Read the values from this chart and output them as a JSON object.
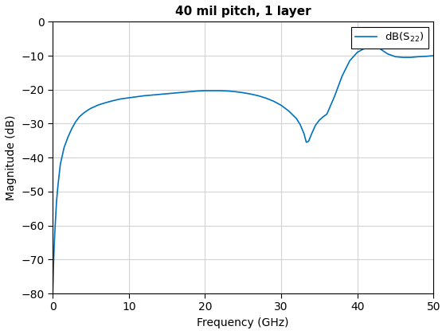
{
  "title": "40 mil pitch, 1 layer",
  "xlabel": "Frequency (GHz)",
  "ylabel": "Magnitude (dB)",
  "xlim": [
    0,
    50
  ],
  "ylim": [
    -80,
    0
  ],
  "xticks": [
    0,
    10,
    20,
    30,
    40,
    50
  ],
  "yticks": [
    0,
    -10,
    -20,
    -30,
    -40,
    -50,
    -60,
    -70,
    -80
  ],
  "line_color": "#0072BD",
  "line_width": 1.2,
  "legend_label": "dB(S_{22})",
  "grid_color": "#D3D3D3",
  "background_color": "#FFFFFF",
  "freq_points": [
    0.0,
    0.05,
    0.1,
    0.2,
    0.3,
    0.5,
    0.7,
    1.0,
    1.5,
    2.0,
    2.5,
    3.0,
    3.5,
    4.0,
    4.5,
    5.0,
    6.0,
    7.0,
    8.0,
    9.0,
    10.0,
    11.0,
    12.0,
    13.0,
    14.0,
    15.0,
    16.0,
    17.0,
    18.0,
    19.0,
    20.0,
    21.0,
    22.0,
    23.0,
    24.0,
    25.0,
    26.0,
    27.0,
    28.0,
    29.0,
    30.0,
    31.0,
    32.0,
    32.5,
    33.0,
    33.3,
    33.6,
    34.0,
    34.5,
    35.0,
    35.5,
    36.0,
    37.0,
    38.0,
    39.0,
    40.0,
    41.0,
    42.0,
    43.0,
    44.0,
    45.0,
    46.0,
    47.0,
    48.0,
    49.0,
    50.0
  ],
  "mag_points": [
    -80,
    -76,
    -72,
    -66,
    -61,
    -53,
    -48,
    -42,
    -37,
    -34,
    -31.5,
    -29.5,
    -28,
    -27,
    -26.2,
    -25.5,
    -24.5,
    -23.8,
    -23.2,
    -22.7,
    -22.4,
    -22.1,
    -21.8,
    -21.6,
    -21.4,
    -21.2,
    -21.0,
    -20.8,
    -20.6,
    -20.4,
    -20.3,
    -20.3,
    -20.3,
    -20.4,
    -20.6,
    -20.9,
    -21.3,
    -21.8,
    -22.5,
    -23.4,
    -24.6,
    -26.3,
    -28.5,
    -30.3,
    -33.0,
    -35.5,
    -35.2,
    -33.0,
    -30.5,
    -29.0,
    -28.0,
    -27.2,
    -22.0,
    -16.0,
    -11.5,
    -9.0,
    -7.8,
    -7.2,
    -8.0,
    -9.5,
    -10.3,
    -10.5,
    -10.5,
    -10.3,
    -10.2,
    -10.0
  ]
}
